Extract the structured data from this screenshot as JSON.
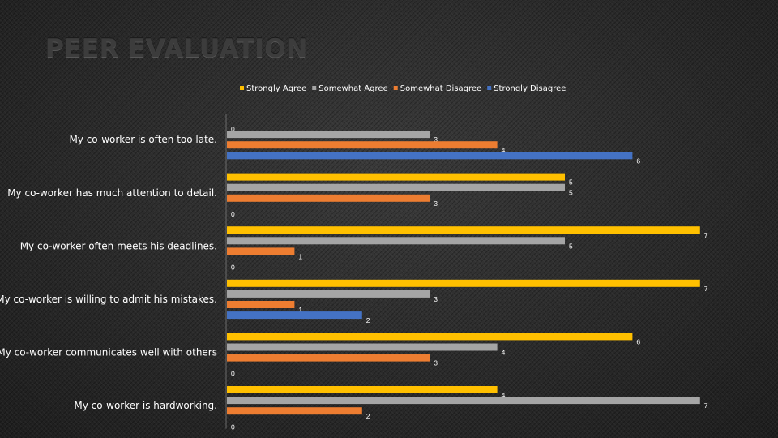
{
  "chart_data": {
    "type": "bar",
    "orientation": "horizontal",
    "title": "PEER EVALUATION",
    "categories": [
      "My co-worker is often too late.",
      "My co-worker has much attention to detail.",
      "My co-worker often meets his deadlines.",
      "My co-worker is willing to admit his mistakes.",
      "My co-worker communicates well with others",
      "My co-worker is hardworking."
    ],
    "series": [
      {
        "name": "Strongly Agree",
        "color": "#FFC000",
        "values": [
          0,
          5,
          7,
          7,
          6,
          4
        ]
      },
      {
        "name": "Somewhat Agree",
        "color": "#A5A5A5",
        "values": [
          3,
          5,
          5,
          3,
          4,
          7
        ]
      },
      {
        "name": "Somewhat Disagree",
        "color": "#ED7D31",
        "values": [
          4,
          3,
          1,
          1,
          3,
          2
        ]
      },
      {
        "name": "Strongly Disagree",
        "color": "#4472C4",
        "values": [
          6,
          0,
          0,
          2,
          0,
          0
        ]
      }
    ],
    "xlim": [
      0,
      7
    ],
    "legend_position": "top",
    "grid": false
  }
}
